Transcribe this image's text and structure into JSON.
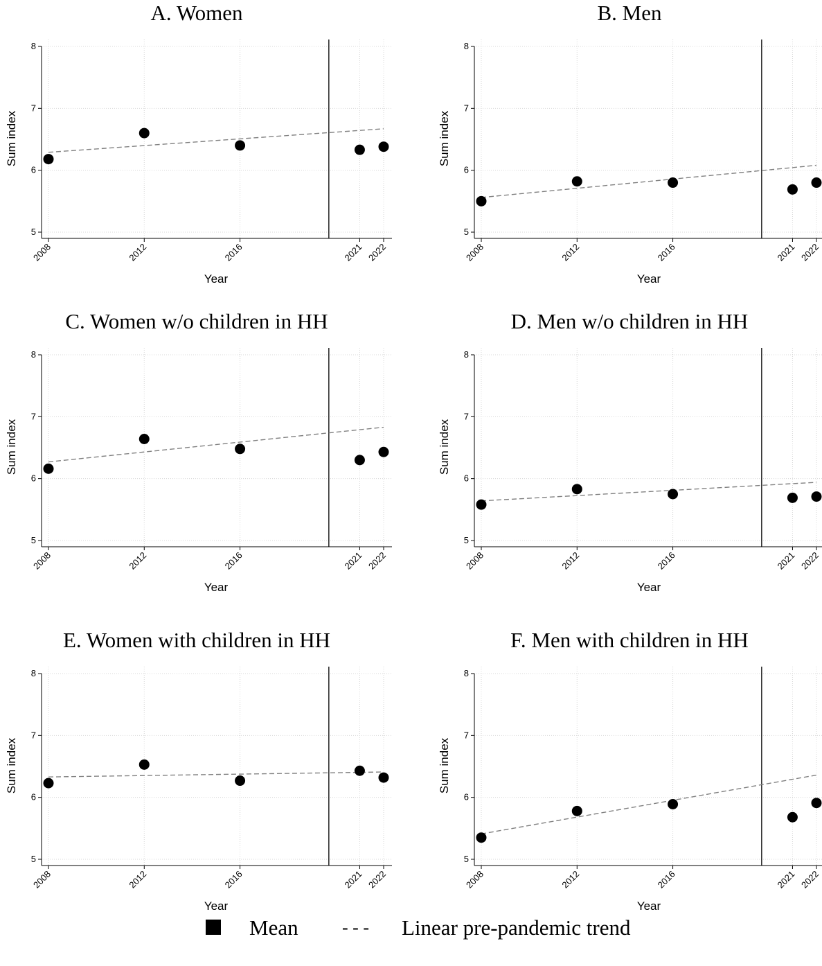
{
  "chart_data": [
    {
      "type": "scatter",
      "title": "A. Women",
      "xlabel": "Year",
      "ylabel": "Sum index",
      "x_ticks": [
        2008,
        2012,
        2016,
        2021,
        2022
      ],
      "y_ticks": [
        5,
        6,
        7,
        8
      ],
      "ylim": [
        5,
        8
      ],
      "pandemic_line_x": 2020,
      "points": [
        {
          "x": 2008,
          "y": 6.18
        },
        {
          "x": 2012,
          "y": 6.6
        },
        {
          "x": 2016,
          "y": 6.4
        },
        {
          "x": 2021,
          "y": 6.33
        },
        {
          "x": 2022,
          "y": 6.38
        }
      ],
      "trend": {
        "x": [
          2008,
          2022
        ],
        "y": [
          6.29,
          6.67
        ]
      }
    },
    {
      "type": "scatter",
      "title": "B. Men",
      "xlabel": "Year",
      "ylabel": "Sum index",
      "x_ticks": [
        2008,
        2012,
        2016,
        2021,
        2022
      ],
      "y_ticks": [
        5,
        6,
        7,
        8
      ],
      "ylim": [
        5,
        8
      ],
      "pandemic_line_x": 2020,
      "points": [
        {
          "x": 2008,
          "y": 5.5
        },
        {
          "x": 2012,
          "y": 5.82
        },
        {
          "x": 2016,
          "y": 5.8
        },
        {
          "x": 2021,
          "y": 5.69
        },
        {
          "x": 2022,
          "y": 5.8
        }
      ],
      "trend": {
        "x": [
          2008,
          2022
        ],
        "y": [
          5.56,
          6.08
        ]
      }
    },
    {
      "type": "scatter",
      "title": "C. Women w/o children in HH",
      "xlabel": "Year",
      "ylabel": "Sum index",
      "x_ticks": [
        2008,
        2012,
        2016,
        2021,
        2022
      ],
      "y_ticks": [
        5,
        6,
        7,
        8
      ],
      "ylim": [
        5,
        8
      ],
      "pandemic_line_x": 2020,
      "points": [
        {
          "x": 2008,
          "y": 6.16
        },
        {
          "x": 2012,
          "y": 6.64
        },
        {
          "x": 2016,
          "y": 6.48
        },
        {
          "x": 2021,
          "y": 6.3
        },
        {
          "x": 2022,
          "y": 6.43
        }
      ],
      "trend": {
        "x": [
          2008,
          2022
        ],
        "y": [
          6.27,
          6.83
        ]
      }
    },
    {
      "type": "scatter",
      "title": "D. Men w/o children in HH",
      "xlabel": "Year",
      "ylabel": "Sum index",
      "x_ticks": [
        2008,
        2012,
        2016,
        2021,
        2022
      ],
      "y_ticks": [
        5,
        6,
        7,
        8
      ],
      "ylim": [
        5,
        8
      ],
      "pandemic_line_x": 2020,
      "points": [
        {
          "x": 2008,
          "y": 5.58
        },
        {
          "x": 2012,
          "y": 5.83
        },
        {
          "x": 2016,
          "y": 5.75
        },
        {
          "x": 2021,
          "y": 5.69
        },
        {
          "x": 2022,
          "y": 5.71
        }
      ],
      "trend": {
        "x": [
          2008,
          2022
        ],
        "y": [
          5.64,
          5.94
        ]
      }
    },
    {
      "type": "scatter",
      "title": "E. Women with children in HH",
      "xlabel": "Year",
      "ylabel": "Sum index",
      "x_ticks": [
        2008,
        2012,
        2016,
        2021,
        2022
      ],
      "y_ticks": [
        5,
        6,
        7,
        8
      ],
      "ylim": [
        5,
        8
      ],
      "pandemic_line_x": 2020,
      "points": [
        {
          "x": 2008,
          "y": 6.23
        },
        {
          "x": 2012,
          "y": 6.53
        },
        {
          "x": 2016,
          "y": 6.27
        },
        {
          "x": 2021,
          "y": 6.43
        },
        {
          "x": 2022,
          "y": 6.32
        }
      ],
      "trend": {
        "x": [
          2008,
          2022
        ],
        "y": [
          6.33,
          6.41
        ]
      }
    },
    {
      "type": "scatter",
      "title": "F. Men with children in HH",
      "xlabel": "Year",
      "ylabel": "Sum index",
      "x_ticks": [
        2008,
        2012,
        2016,
        2021,
        2022
      ],
      "y_ticks": [
        5,
        6,
        7,
        8
      ],
      "ylim": [
        5,
        8
      ],
      "pandemic_line_x": 2020,
      "points": [
        {
          "x": 2008,
          "y": 5.35
        },
        {
          "x": 2012,
          "y": 5.78
        },
        {
          "x": 2016,
          "y": 5.89
        },
        {
          "x": 2021,
          "y": 5.68
        },
        {
          "x": 2022,
          "y": 5.91
        }
      ],
      "trend": {
        "x": [
          2008,
          2022
        ],
        "y": [
          5.41,
          6.36
        ]
      }
    }
  ],
  "legend": {
    "mean_label": "Mean",
    "trend_symbol": "- - -",
    "trend_label": "Linear pre-pandemic trend"
  },
  "colors": {
    "marker": "#000000",
    "trend_line": "#808080",
    "grid": "#d8d8d8",
    "axis": "#000000"
  }
}
